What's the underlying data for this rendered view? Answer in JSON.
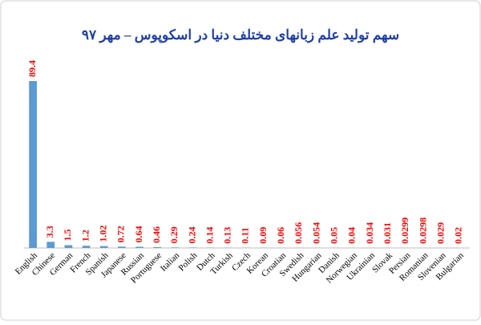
{
  "chart_data": {
    "type": "bar",
    "title": "سهم تولید علم زبانهای مختلف دنیا در اسکوپوس – مهر ۹۷",
    "categories": [
      "English",
      "Chinese",
      "German",
      "French",
      "Spanish",
      "Japanese",
      "Russian",
      "Portuguese",
      "Italian",
      "Polish",
      "Dutch",
      "Turkish",
      "Czech",
      "Korean",
      "Croatian",
      "Swedish",
      "Hungarian",
      "Danish",
      "Norwegian",
      "Ukrainian",
      "Slovak",
      "Persian",
      "Romanian",
      "Slovenian",
      "Bulgarian"
    ],
    "values": [
      89.4,
      3.3,
      1.5,
      1.2,
      1.02,
      0.72,
      0.64,
      0.46,
      0.29,
      0.24,
      0.14,
      0.13,
      0.11,
      0.09,
      0.06,
      0.056,
      0.054,
      0.05,
      0.04,
      0.034,
      0.031,
      0.0299,
      0.0298,
      0.029,
      0.02
    ],
    "color": "#5b9bd5",
    "label_color": "#ff0000",
    "title_color": "#1f3fa8"
  }
}
